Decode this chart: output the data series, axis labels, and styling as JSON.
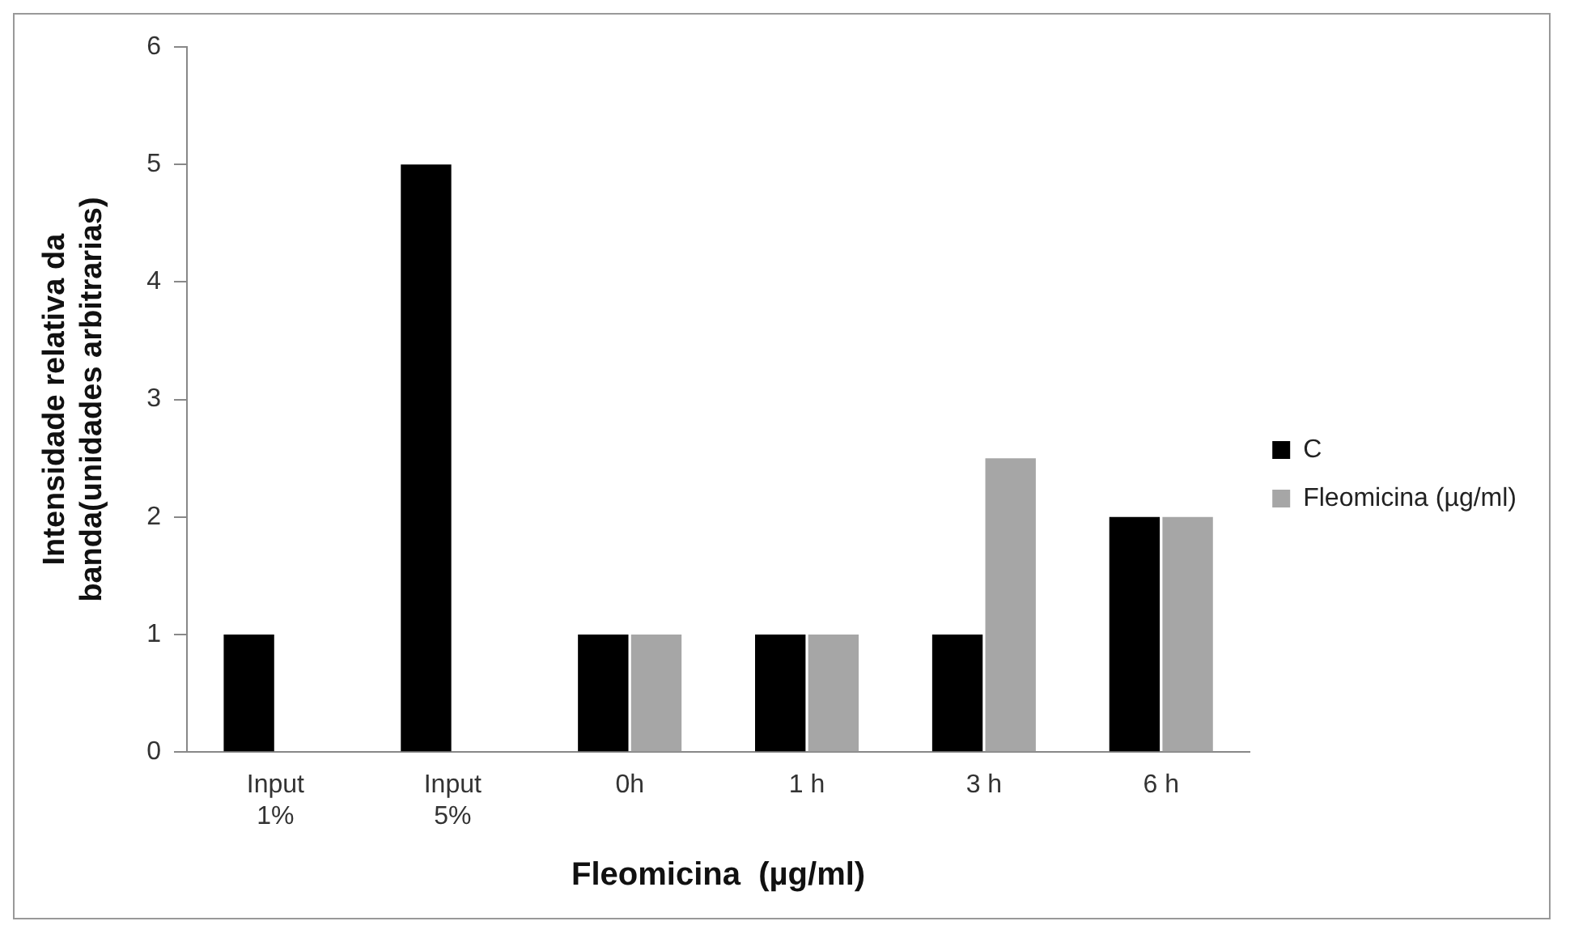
{
  "chart_data": {
    "type": "bar",
    "xlabel": "Fleomicina  (µg/ml)",
    "ylabel": "Intensidade relativa da\nbanda(unidades arbitrarias)",
    "categories": [
      "Input\n1%",
      "Input\n5%",
      "0h",
      "1 h",
      "3 h",
      "6 h"
    ],
    "series": [
      {
        "name": "C",
        "color": "#000000",
        "values": [
          1,
          5,
          1,
          1,
          1,
          2
        ]
      },
      {
        "name": "Fleomicina (µg/ml)",
        "color": "#a6a6a6",
        "values": [
          null,
          null,
          1,
          1,
          2.5,
          2
        ]
      }
    ],
    "ylim": [
      0,
      6
    ],
    "yticks": [
      0,
      1,
      2,
      3,
      4,
      5,
      6
    ],
    "grid": false,
    "legend": "right"
  }
}
